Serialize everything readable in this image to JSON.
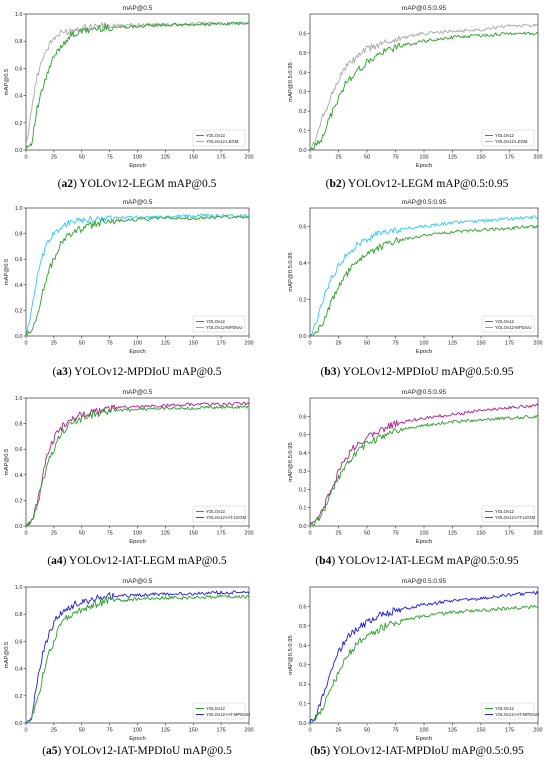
{
  "chart_data": [
    {
      "id": "a2",
      "type": "line",
      "title": "mAP@0.5",
      "xlabel": "Epoch",
      "ylabel": "mAP@0.5",
      "xlim": [
        0,
        200
      ],
      "ylim": [
        0,
        1.0
      ],
      "xticks": [
        "0",
        "25",
        "50",
        "75",
        "100",
        "125",
        "150",
        "175",
        "200"
      ],
      "yticks": [
        "0.0",
        "0.2",
        "0.4",
        "0.6",
        "0.8",
        "1.0"
      ],
      "legend_position": "lower-right",
      "series": [
        {
          "name": "YOLOv12",
          "color": "#2ca02c",
          "x": [
            0,
            5,
            10,
            15,
            20,
            25,
            30,
            35,
            40,
            50,
            60,
            75,
            100,
            125,
            150,
            175,
            200
          ],
          "y": [
            0.02,
            0.05,
            0.3,
            0.45,
            0.58,
            0.68,
            0.75,
            0.8,
            0.84,
            0.87,
            0.89,
            0.9,
            0.91,
            0.92,
            0.92,
            0.93,
            0.93
          ]
        },
        {
          "name": "YOLOv12-LEGM",
          "color": "#a9a9a9",
          "x": [
            0,
            5,
            10,
            15,
            20,
            25,
            30,
            35,
            40,
            50,
            60,
            75,
            100,
            125,
            150,
            175,
            200
          ],
          "y": [
            0.02,
            0.3,
            0.55,
            0.68,
            0.76,
            0.82,
            0.85,
            0.87,
            0.88,
            0.9,
            0.91,
            0.91,
            0.92,
            0.92,
            0.93,
            0.93,
            0.93
          ]
        }
      ],
      "caption_label": "a2",
      "caption_text": "YOLOv12-LEGM mAP@0.5"
    },
    {
      "id": "b2",
      "type": "line",
      "title": "mAP@0.5:0.95",
      "xlabel": "Epoch",
      "ylabel": "mAP@0.5:0.95",
      "xlim": [
        0,
        200
      ],
      "ylim": [
        0,
        0.7
      ],
      "xticks": [
        "0",
        "25",
        "50",
        "75",
        "100",
        "125",
        "150",
        "175",
        "200"
      ],
      "yticks": [
        "0.0",
        "0.1",
        "0.2",
        "0.3",
        "0.4",
        "0.5",
        "0.6"
      ],
      "legend_position": "lower-right",
      "series": [
        {
          "name": "YOLOv12",
          "color": "#2ca02c",
          "x": [
            0,
            5,
            10,
            20,
            30,
            40,
            50,
            60,
            75,
            100,
            125,
            150,
            175,
            200
          ],
          "y": [
            0.0,
            0.02,
            0.06,
            0.2,
            0.33,
            0.4,
            0.45,
            0.49,
            0.53,
            0.56,
            0.58,
            0.59,
            0.6,
            0.6
          ]
        },
        {
          "name": "YOLOv12-LEGM",
          "color": "#a9a9a9",
          "x": [
            0,
            5,
            10,
            20,
            30,
            40,
            50,
            60,
            75,
            100,
            125,
            150,
            175,
            200
          ],
          "y": [
            0.0,
            0.05,
            0.15,
            0.3,
            0.42,
            0.47,
            0.52,
            0.54,
            0.57,
            0.6,
            0.61,
            0.62,
            0.64,
            0.64
          ]
        }
      ],
      "caption_label": "b2",
      "caption_text": "YOLOv12-LEGM mAP@0.5:0.95"
    },
    {
      "id": "a3",
      "type": "line",
      "title": "mAP@0.5",
      "xlabel": "Epoch",
      "ylabel": "mAP@0.5",
      "xlim": [
        0,
        200
      ],
      "ylim": [
        0,
        1.0
      ],
      "xticks": [
        "0",
        "25",
        "50",
        "75",
        "100",
        "125",
        "150",
        "175",
        "200"
      ],
      "yticks": [
        "0.0",
        "0.2",
        "0.4",
        "0.6",
        "0.8",
        "1.0"
      ],
      "legend_position": "lower-right",
      "series": [
        {
          "name": "YOLOv12",
          "color": "#2ca02c",
          "x": [
            0,
            5,
            10,
            15,
            20,
            25,
            30,
            35,
            40,
            50,
            60,
            75,
            100,
            125,
            150,
            175,
            200
          ],
          "y": [
            0.0,
            0.04,
            0.15,
            0.35,
            0.5,
            0.6,
            0.7,
            0.76,
            0.8,
            0.84,
            0.87,
            0.9,
            0.91,
            0.92,
            0.92,
            0.93,
            0.93
          ]
        },
        {
          "name": "YOLOv12-MPDIoU",
          "color": "#33c8ee",
          "x": [
            0,
            5,
            10,
            15,
            20,
            25,
            30,
            35,
            40,
            50,
            60,
            75,
            100,
            125,
            150,
            175,
            200
          ],
          "y": [
            0.0,
            0.2,
            0.45,
            0.62,
            0.74,
            0.8,
            0.84,
            0.87,
            0.89,
            0.9,
            0.91,
            0.92,
            0.93,
            0.93,
            0.94,
            0.94,
            0.94
          ]
        }
      ],
      "caption_label": "a3",
      "caption_text": "YOLOv12-MPDIoU mAP@0.5"
    },
    {
      "id": "b3",
      "type": "line",
      "title": "mAP@0.5:0.95",
      "xlabel": "Epoch",
      "ylabel": "mAP@0.5:0.95",
      "xlim": [
        0,
        200
      ],
      "ylim": [
        0,
        0.7
      ],
      "xticks": [
        "0",
        "25",
        "50",
        "75",
        "100",
        "125",
        "150",
        "175",
        "200"
      ],
      "yticks": [
        "0.0",
        "0.2",
        "0.4",
        "0.6"
      ],
      "legend_position": "lower-right",
      "series": [
        {
          "name": "YOLOv12",
          "color": "#2ca02c",
          "x": [
            0,
            5,
            10,
            20,
            30,
            40,
            50,
            60,
            75,
            100,
            125,
            150,
            175,
            200
          ],
          "y": [
            0.0,
            0.02,
            0.06,
            0.2,
            0.32,
            0.4,
            0.45,
            0.48,
            0.52,
            0.55,
            0.57,
            0.58,
            0.59,
            0.6
          ]
        },
        {
          "name": "YOLOv12-MPDIoU",
          "color": "#33c8ee",
          "x": [
            0,
            5,
            10,
            20,
            30,
            40,
            50,
            60,
            75,
            100,
            125,
            150,
            175,
            200
          ],
          "y": [
            0.0,
            0.06,
            0.18,
            0.33,
            0.43,
            0.49,
            0.53,
            0.56,
            0.58,
            0.6,
            0.62,
            0.63,
            0.64,
            0.65
          ]
        }
      ],
      "caption_label": "b3",
      "caption_text": "YOLOv12-MPDIoU mAP@0.5:0.95"
    },
    {
      "id": "a4",
      "type": "line",
      "title": "mAP@0.5",
      "xlabel": "Epoch",
      "ylabel": "mAP@0.5",
      "xlim": [
        0,
        200
      ],
      "ylim": [
        0,
        1.0
      ],
      "xticks": [
        "0",
        "25",
        "50",
        "75",
        "100",
        "125",
        "150",
        "175",
        "200"
      ],
      "yticks": [
        "0.0",
        "0.2",
        "0.4",
        "0.6",
        "0.8",
        "1.0"
      ],
      "legend_position": "lower-right",
      "series": [
        {
          "name": "YOLOv12",
          "color": "#2ca02c",
          "x": [
            0,
            5,
            10,
            15,
            20,
            25,
            30,
            35,
            40,
            50,
            60,
            75,
            100,
            125,
            150,
            175,
            200
          ],
          "y": [
            0.0,
            0.04,
            0.15,
            0.35,
            0.5,
            0.6,
            0.7,
            0.76,
            0.8,
            0.84,
            0.87,
            0.9,
            0.91,
            0.92,
            0.92,
            0.93,
            0.93
          ]
        },
        {
          "name": "YOLOv12-IAT-LEGM",
          "color": "#b0208f",
          "x": [
            0,
            5,
            10,
            15,
            20,
            25,
            30,
            35,
            40,
            50,
            60,
            75,
            100,
            125,
            150,
            175,
            200
          ],
          "y": [
            0.0,
            0.03,
            0.18,
            0.4,
            0.58,
            0.68,
            0.75,
            0.8,
            0.83,
            0.87,
            0.89,
            0.92,
            0.93,
            0.94,
            0.95,
            0.95,
            0.96
          ]
        }
      ],
      "caption_label": "a4",
      "caption_text": "YOLOv12-IAT-LEGM mAP@0.5"
    },
    {
      "id": "b4",
      "type": "line",
      "title": "mAP@0.5:0.95",
      "xlabel": "Epoch",
      "ylabel": "mAP@0.5:0.95",
      "xlim": [
        0,
        200
      ],
      "ylim": [
        0,
        0.7
      ],
      "xticks": [
        "0",
        "25",
        "50",
        "75",
        "100",
        "125",
        "150",
        "175",
        "200"
      ],
      "yticks": [
        "0.0",
        "0.1",
        "0.2",
        "0.3",
        "0.4",
        "0.5",
        "0.6"
      ],
      "legend_position": "lower-right",
      "series": [
        {
          "name": "YOLOv12",
          "color": "#2ca02c",
          "x": [
            0,
            5,
            10,
            20,
            30,
            40,
            50,
            60,
            75,
            100,
            125,
            150,
            175,
            200
          ],
          "y": [
            0.0,
            0.02,
            0.06,
            0.2,
            0.32,
            0.4,
            0.45,
            0.48,
            0.52,
            0.55,
            0.57,
            0.58,
            0.59,
            0.6
          ]
        },
        {
          "name": "YOLOv12-IAT-LEGM",
          "color": "#b0208f",
          "x": [
            0,
            5,
            10,
            20,
            30,
            40,
            50,
            60,
            75,
            100,
            125,
            150,
            175,
            200
          ],
          "y": [
            0.0,
            0.02,
            0.07,
            0.23,
            0.36,
            0.44,
            0.49,
            0.52,
            0.56,
            0.59,
            0.61,
            0.63,
            0.65,
            0.66
          ]
        }
      ],
      "caption_label": "b4",
      "caption_text": "YOLOv12-IAT-LEGM mAP@0.5:0.95"
    },
    {
      "id": "a5",
      "type": "line",
      "title": "mAP@0.5",
      "xlabel": "Epoch",
      "ylabel": "mAP@0.5",
      "xlim": [
        0,
        200
      ],
      "ylim": [
        0,
        1.0
      ],
      "xticks": [
        "0",
        "25",
        "50",
        "75",
        "100",
        "125",
        "150",
        "175",
        "200"
      ],
      "yticks": [
        "0.0",
        "0.2",
        "0.4",
        "0.6",
        "0.8",
        "1.0"
      ],
      "legend_position": "lower-right",
      "series": [
        {
          "name": "YOLOv12",
          "color": "#2ca02c",
          "x": [
            0,
            5,
            10,
            15,
            20,
            25,
            30,
            35,
            40,
            50,
            60,
            75,
            100,
            125,
            150,
            175,
            200
          ],
          "y": [
            0.0,
            0.04,
            0.15,
            0.35,
            0.5,
            0.6,
            0.7,
            0.76,
            0.8,
            0.84,
            0.87,
            0.9,
            0.91,
            0.92,
            0.92,
            0.93,
            0.93
          ]
        },
        {
          "name": "YOLOv12-IAT-MPDIoU",
          "color": "#1f1fd6",
          "x": [
            0,
            5,
            10,
            15,
            20,
            25,
            30,
            35,
            40,
            50,
            60,
            75,
            100,
            125,
            150,
            175,
            200
          ],
          "y": [
            0.0,
            0.05,
            0.3,
            0.5,
            0.64,
            0.74,
            0.8,
            0.84,
            0.86,
            0.89,
            0.91,
            0.93,
            0.94,
            0.95,
            0.95,
            0.96,
            0.96
          ]
        }
      ],
      "caption_label": "a5",
      "caption_text": "YOLOv12-IAT-MPDIoU mAP@0.5"
    },
    {
      "id": "b5",
      "type": "line",
      "title": "mAP@0.5:0.95",
      "xlabel": "Epoch",
      "ylabel": "mAP@0.5:0.95",
      "xlim": [
        0,
        200
      ],
      "ylim": [
        0,
        0.7
      ],
      "xticks": [
        "0",
        "25",
        "50",
        "75",
        "100",
        "125",
        "150",
        "175",
        "200"
      ],
      "yticks": [
        "0.0",
        "0.1",
        "0.2",
        "0.3",
        "0.4",
        "0.5",
        "0.6"
      ],
      "legend_position": "lower-right",
      "series": [
        {
          "name": "YOLOv12",
          "color": "#2ca02c",
          "x": [
            0,
            5,
            10,
            20,
            30,
            40,
            50,
            60,
            75,
            100,
            125,
            150,
            175,
            200
          ],
          "y": [
            0.0,
            0.02,
            0.06,
            0.2,
            0.32,
            0.4,
            0.45,
            0.48,
            0.52,
            0.55,
            0.57,
            0.58,
            0.59,
            0.6
          ]
        },
        {
          "name": "YOLOv12-IAT-MPDIoU",
          "color": "#1f1fd6",
          "x": [
            0,
            5,
            10,
            20,
            30,
            40,
            50,
            60,
            75,
            100,
            125,
            150,
            175,
            200
          ],
          "y": [
            0.0,
            0.03,
            0.12,
            0.3,
            0.42,
            0.48,
            0.52,
            0.55,
            0.58,
            0.61,
            0.63,
            0.64,
            0.66,
            0.67
          ]
        }
      ],
      "caption_label": "b5",
      "caption_text": "YOLOv12-IAT-MPDIoU mAP@0.5:0.95"
    }
  ]
}
